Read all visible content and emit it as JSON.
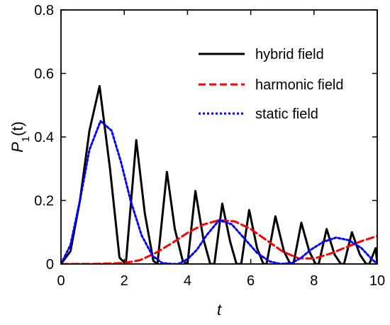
{
  "chart_data": {
    "type": "line",
    "xlabel": "t",
    "ylabel_main": "P",
    "ylabel_sub": "1",
    "ylabel_arg": "(t)",
    "xlim": [
      0,
      10
    ],
    "ylim": [
      0,
      0.8
    ],
    "xticks": [
      0,
      2,
      4,
      6,
      8,
      10
    ],
    "yticks": [
      0,
      0.2,
      0.4,
      0.6,
      0.8
    ],
    "xtick_labels": [
      "0",
      "2",
      "4",
      "6",
      "8",
      "10"
    ],
    "ytick_labels": [
      "0",
      "0.2",
      "0.4",
      "0.6",
      "0.8"
    ],
    "grid": false,
    "legend_position": "top-right",
    "series": [
      {
        "name": "hybrid field",
        "color": "#000000",
        "dash": "solid",
        "x": [
          0,
          0.3,
          0.6,
          0.9,
          1.22,
          1.55,
          1.85,
          2.05,
          2.38,
          2.65,
          2.92,
          3.05,
          3.35,
          3.6,
          3.85,
          4.0,
          4.25,
          4.5,
          4.72,
          4.85,
          5.1,
          5.35,
          5.55,
          5.7,
          5.95,
          6.2,
          6.4,
          6.5,
          6.78,
          7.05,
          7.25,
          7.35,
          7.6,
          7.85,
          8.05,
          8.15,
          8.4,
          8.65,
          8.85,
          8.95,
          9.2,
          9.45,
          9.65,
          9.75,
          9.95,
          10.0
        ],
        "y": [
          0.0,
          0.04,
          0.2,
          0.42,
          0.56,
          0.3,
          0.02,
          0.0,
          0.39,
          0.16,
          0.01,
          0.0,
          0.29,
          0.11,
          0.01,
          0.0,
          0.23,
          0.08,
          0.0,
          0.0,
          0.19,
          0.07,
          0.0,
          0.0,
          0.17,
          0.05,
          0.0,
          0.0,
          0.15,
          0.04,
          0.0,
          0.0,
          0.13,
          0.04,
          0.0,
          0.0,
          0.11,
          0.03,
          0.0,
          0.0,
          0.1,
          0.03,
          0.0,
          0.0,
          0.05,
          0.0
        ]
      },
      {
        "name": "harmonic field",
        "color": "#ff0000",
        "dash": "dash",
        "x": [
          0,
          1.0,
          2.0,
          2.5,
          3.0,
          3.5,
          4.0,
          4.5,
          5.0,
          5.5,
          6.0,
          6.5,
          7.0,
          7.5,
          8.0,
          8.5,
          9.0,
          9.5,
          10.0
        ],
        "y": [
          0.0,
          0.0,
          0.003,
          0.012,
          0.035,
          0.065,
          0.098,
          0.124,
          0.138,
          0.134,
          0.11,
          0.075,
          0.04,
          0.018,
          0.017,
          0.032,
          0.052,
          0.072,
          0.088
        ]
      },
      {
        "name": "static field",
        "color": "#0000ff",
        "dash": "dot",
        "x": [
          0,
          0.3,
          0.6,
          0.9,
          1.25,
          1.6,
          1.9,
          2.2,
          2.55,
          2.9,
          3.2,
          3.5,
          3.7,
          4.0,
          4.3,
          4.6,
          5.0,
          5.4,
          5.8,
          6.2,
          6.6,
          6.95,
          7.3,
          7.6,
          7.9,
          8.3,
          8.7,
          9.1,
          9.5,
          9.8,
          10.0
        ],
        "y": [
          0.0,
          0.06,
          0.2,
          0.36,
          0.45,
          0.42,
          0.32,
          0.2,
          0.09,
          0.025,
          0.003,
          0.0,
          0.0,
          0.015,
          0.045,
          0.09,
          0.138,
          0.125,
          0.08,
          0.035,
          0.008,
          0.0,
          0.003,
          0.02,
          0.045,
          0.07,
          0.083,
          0.075,
          0.05,
          0.018,
          0.0
        ]
      }
    ]
  }
}
